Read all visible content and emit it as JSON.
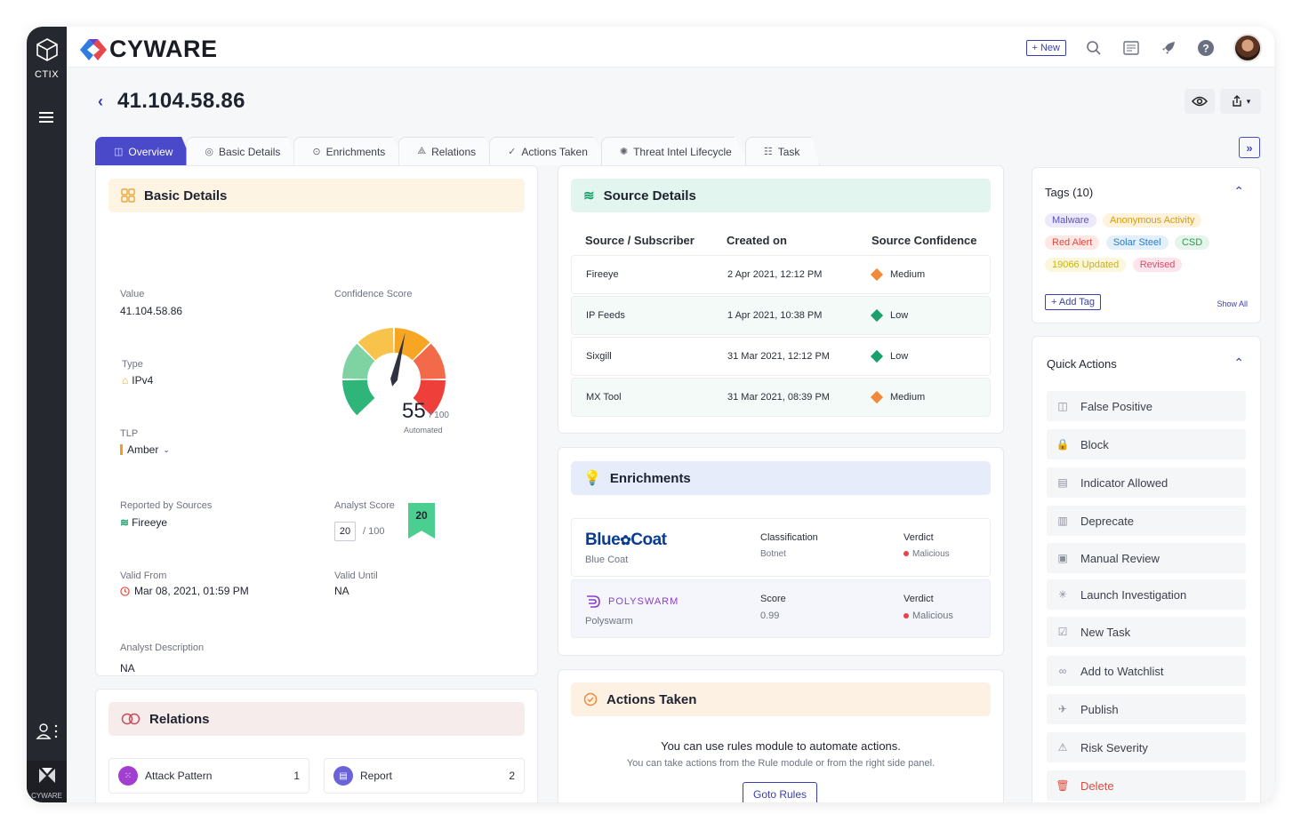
{
  "rail": {
    "product": "CTIX",
    "footer": "CYWARE"
  },
  "brand": {
    "name": "CYWARE"
  },
  "topbar": {
    "new_label": "+ New"
  },
  "page": {
    "back": "‹",
    "title": "41.104.58.86"
  },
  "tabs": [
    {
      "label": "Overview",
      "icon": "overview-icon"
    },
    {
      "label": "Basic Details",
      "icon": "fingerprint-icon"
    },
    {
      "label": "Enrichments",
      "icon": "enrich-icon"
    },
    {
      "label": "Relations",
      "icon": "relations-icon"
    },
    {
      "label": "Actions Taken",
      "icon": "check-circle-icon"
    },
    {
      "label": "Threat Intel Lifecycle",
      "icon": "lifecycle-icon"
    },
    {
      "label": "Task",
      "icon": "task-icon"
    }
  ],
  "basic": {
    "title": "Basic Details",
    "value_label": "Value",
    "value": "41.104.58.86",
    "type_label": "Type",
    "type": "IPv4",
    "tlp_label": "TLP",
    "tlp": "Amber",
    "reported_label": "Reported by Sources",
    "reported": "Fireeye",
    "valid_from_label": "Valid From",
    "valid_from": "Mar 08, 2021, 01:59 PM",
    "valid_until_label": "Valid Until",
    "valid_until": "NA",
    "desc_label": "Analyst Description",
    "desc": "NA",
    "confidence_label": "Confidence Score",
    "confidence": "55",
    "confidence_max": "/ 100",
    "confidence_sub": "Automated",
    "confidence_value": 55,
    "analyst_label": "Analyst Score",
    "analyst": "20",
    "analyst_max": "/ 100",
    "analyst_badge": "20"
  },
  "source": {
    "title": "Source Details",
    "headers": [
      "Source / Subscriber",
      "Created on",
      "Source Confidence"
    ],
    "rows": [
      {
        "source": "Fireeye",
        "created": "2 Apr 2021, 12:12 PM",
        "confidence": "Medium",
        "color": "#f08a3a"
      },
      {
        "source": "IP Feeds",
        "created": "1 Apr 2021, 10:38 PM",
        "confidence": "Low",
        "color": "#1aa06d"
      },
      {
        "source": "Sixgill",
        "created": "31 Mar 2021, 12:12 PM",
        "confidence": "Low",
        "color": "#1aa06d"
      },
      {
        "source": "MX Tool",
        "created": "31 Mar 2021, 08:39 PM",
        "confidence": "Medium",
        "color": "#f08a3a"
      }
    ]
  },
  "enrichments": {
    "title": "Enrichments",
    "rows": [
      {
        "logo": "Blue",
        "logo2": "Coat",
        "name": "Blue Coat",
        "m1_label": "Classification",
        "m1": "Botnet",
        "m2_label": "Verdict",
        "m2": "Malicious"
      },
      {
        "logo": "POLYSWARM",
        "name": "Polyswarm",
        "m1_label": "Score",
        "m1": "0.99",
        "m2_label": "Verdict",
        "m2": "Malicious"
      }
    ]
  },
  "relations": {
    "title": "Relations",
    "items": [
      {
        "label": "Attack Pattern",
        "count": "1"
      },
      {
        "label": "Report",
        "count": "2"
      }
    ]
  },
  "actions": {
    "title": "Actions Taken",
    "heading": "You can use rules module to automate actions.",
    "sub": "You can take actions from the Rule module or from the right side panel.",
    "button": "Goto Rules"
  },
  "tags": {
    "title": "Tags (10)",
    "items": [
      {
        "label": "Malware",
        "bg": "#ece9fb",
        "fg": "#5b4fc9"
      },
      {
        "label": "Anonymous Activity",
        "bg": "#fdf3dc",
        "fg": "#d79a12"
      },
      {
        "label": "Red Alert",
        "bg": "#fde8e6",
        "fg": "#e04a3c"
      },
      {
        "label": "Solar Steel",
        "bg": "#e3f0fb",
        "fg": "#2b7bc6"
      },
      {
        "label": "CSD",
        "bg": "#e5f5ea",
        "fg": "#2f9653"
      },
      {
        "label": "19066 Updated",
        "bg": "#fbf7dc",
        "fg": "#c9b21a"
      },
      {
        "label": "Revised",
        "bg": "#fce6ec",
        "fg": "#d1506f"
      }
    ],
    "add": "+ Add Tag",
    "show_all": "Show All"
  },
  "quick_actions": {
    "title": "Quick Actions",
    "items": [
      {
        "label": "False Positive",
        "icon": "◫"
      },
      {
        "label": "Block",
        "icon": "🔒"
      },
      {
        "label": "Indicator Allowed",
        "icon": "▤"
      },
      {
        "label": "Deprecate",
        "icon": "▥"
      },
      {
        "label": "Manual Review",
        "icon": "▣"
      },
      {
        "label": "Launch Investigation",
        "icon": "✳"
      },
      {
        "label": "New Task",
        "icon": "☑"
      },
      {
        "label": "Add to Watchlist",
        "icon": "∞"
      },
      {
        "label": "Publish",
        "icon": "✈"
      },
      {
        "label": "Risk Severity",
        "icon": "⚠"
      },
      {
        "label": "Delete",
        "icon": "🗑",
        "danger": true
      }
    ]
  }
}
